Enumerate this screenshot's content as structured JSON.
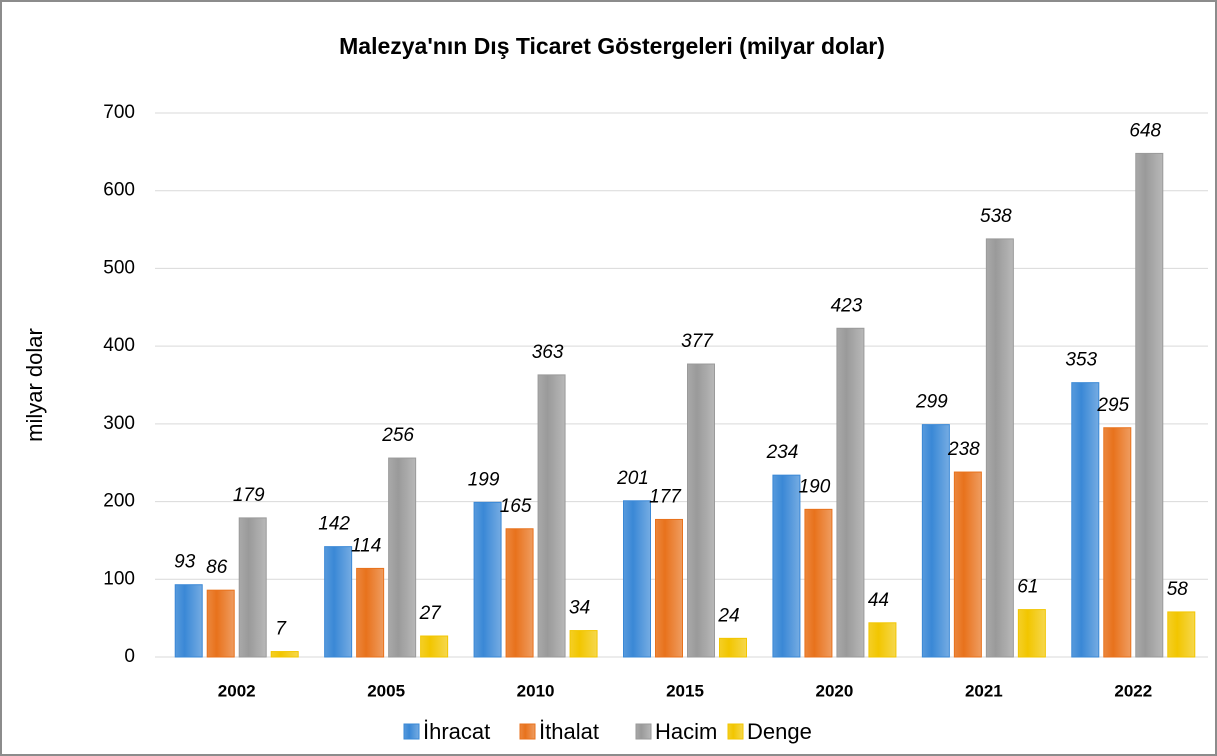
{
  "chart_data": {
    "type": "bar",
    "title": "Malezya'nın Dış Ticaret Göstergeleri  (milyar dolar)",
    "y_label": "milyar dolar",
    "categories": [
      "2002",
      "2005",
      "2010",
      "2015",
      "2020",
      "2021",
      "2022"
    ],
    "series": [
      {
        "name": "İhracat",
        "color": "#3a88d6",
        "values": [
          93,
          142,
          199,
          201,
          234,
          299,
          353
        ]
      },
      {
        "name": "İthalat",
        "color": "#e8721c",
        "values": [
          86,
          114,
          165,
          177,
          190,
          238,
          295
        ]
      },
      {
        "name": "Hacim",
        "color": "#9a9a9a",
        "values": [
          179,
          256,
          363,
          377,
          423,
          538,
          648
        ]
      },
      {
        "name": "Denge",
        "color": "#f2c600",
        "values": [
          7,
          27,
          34,
          24,
          44,
          61,
          58
        ]
      }
    ],
    "ylim": [
      0,
      700
    ],
    "yticks": [
      0,
      100,
      200,
      300,
      400,
      500,
      600,
      700
    ],
    "grid": true,
    "legend": "bottom"
  }
}
